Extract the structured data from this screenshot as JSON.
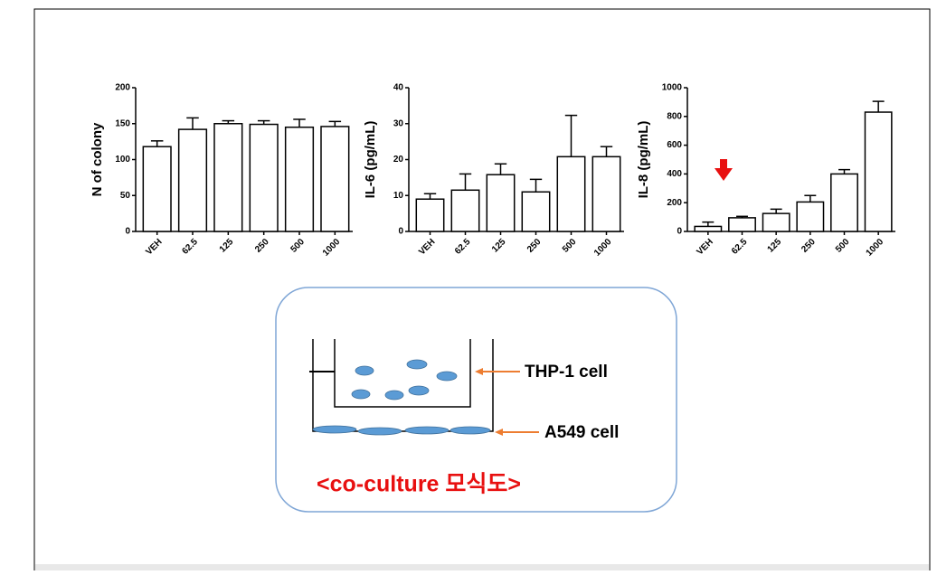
{
  "chart_data": [
    {
      "type": "bar",
      "ylabel": "N of colony",
      "categories": [
        "VEH",
        "62.5",
        "125",
        "250",
        "500",
        "1000"
      ],
      "values": [
        118,
        142,
        150,
        149,
        145,
        146
      ],
      "errors": [
        8,
        16,
        4,
        5,
        11,
        7
      ],
      "color": "#ffffff",
      "ylim": [
        0,
        200
      ],
      "yticks": [
        0,
        50,
        100,
        150,
        200
      ]
    },
    {
      "type": "bar",
      "ylabel": "IL-6 (pg/mL)",
      "categories": [
        "VEH",
        "62.5",
        "125",
        "250",
        "500",
        "1000"
      ],
      "values": [
        9,
        11.5,
        15.8,
        11,
        20.8,
        20.8
      ],
      "errors": [
        1.5,
        4.5,
        3,
        3.5,
        11.5,
        2.8
      ],
      "color": "#ffffff",
      "ylim": [
        0,
        40
      ],
      "yticks": [
        0,
        10,
        20,
        30,
        40
      ]
    },
    {
      "type": "bar",
      "ylabel": "IL-8 (pg/mL)",
      "categories": [
        "VEH",
        "62.5",
        "125",
        "250",
        "500",
        "1000"
      ],
      "values": [
        35,
        95,
        125,
        205,
        400,
        830
      ],
      "errors": [
        30,
        10,
        30,
        45,
        30,
        75
      ],
      "color": "#ffffff",
      "ylim": [
        0,
        1000
      ],
      "yticks": [
        0,
        200,
        400,
        600,
        800,
        1000
      ]
    }
  ],
  "diagram": {
    "thp1_label": "THP-1 cell",
    "a549_label": "A549 cell",
    "caption": "<co-culture 모식도>"
  }
}
